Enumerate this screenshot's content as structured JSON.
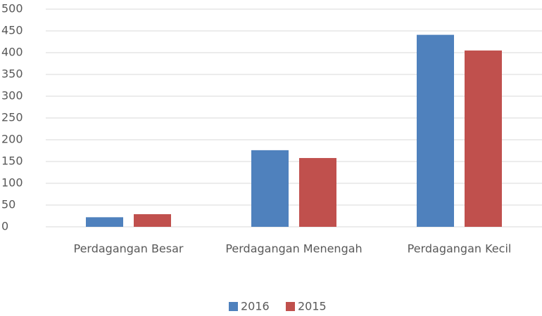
{
  "chart_data": {
    "type": "bar",
    "categories": [
      "Perdagangan Besar",
      "Perdagangan Menengah",
      "Perdagangan Kecil"
    ],
    "series": [
      {
        "name": "2016",
        "color": "#4f81bd",
        "values": [
          22,
          176,
          441
        ]
      },
      {
        "name": "2015",
        "color": "#c0504d",
        "values": [
          29,
          158,
          405
        ]
      }
    ],
    "ylim": [
      0,
      500
    ],
    "yticks": [
      0,
      50,
      100,
      150,
      200,
      250,
      300,
      350,
      400,
      450,
      500
    ],
    "grid": true,
    "legend": "bottom"
  }
}
